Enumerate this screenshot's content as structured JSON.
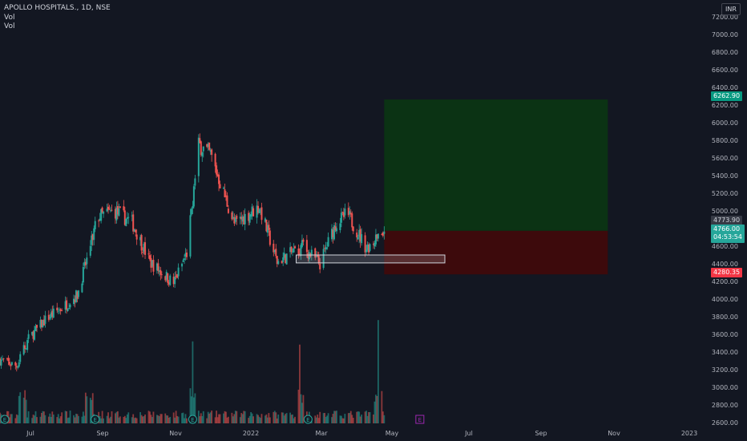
{
  "legend": {
    "symbol_line": "APOLLO HOSPITALS., 1D, NSE",
    "vol_label_1": "Vol",
    "vol_label_2": "Vol"
  },
  "currency": "INR",
  "colors": {
    "background": "#131722",
    "up": "#26a69a",
    "down": "#ef5350",
    "target_zone": "#0b3314",
    "stop_zone": "#3d0a0c",
    "target_badge": "#089981",
    "stop_badge": "#f23645",
    "last_price_badge": "#26a69a",
    "axis_text": "#b2b5be",
    "support_box": "#d1d4dc"
  },
  "price_axis": {
    "ticks": [
      "2600.00",
      "2800.00",
      "3000.00",
      "3200.00",
      "3400.00",
      "3600.00",
      "3800.00",
      "4000.00",
      "4200.00",
      "4400.00",
      "4600.00",
      "4800.00",
      "5000.00",
      "5200.00",
      "5400.00",
      "5600.00",
      "5800.00",
      "6000.00",
      "6200.00",
      "6400.00",
      "6600.00",
      "6800.00",
      "7000.00",
      "7200.00"
    ]
  },
  "time_axis": {
    "labels": [
      "Jul",
      "Sep",
      "Nov",
      "2022",
      "Mar",
      "May",
      "Jul",
      "Sep",
      "Nov",
      "2023"
    ]
  },
  "price_labels": {
    "target": "6262.90",
    "entry": "4773.90",
    "last_price": "4766.00",
    "countdown": "04:53:54",
    "stop": "4280.35"
  },
  "event_markers": {
    "dividend_icon": "E",
    "earnings_icon": "E"
  },
  "chart_data": {
    "type": "candlestick",
    "symbol": "APOLLO HOSPITALS.",
    "interval": "1D",
    "exchange": "NSE",
    "currency": "INR",
    "y_range": [
      2600,
      7200
    ],
    "x_range": [
      "2021-06-01",
      "2023-01-15"
    ],
    "ohlc_anchors": [
      {
        "date": "2021-06-01",
        "close": 3310
      },
      {
        "date": "2021-06-15",
        "close": 3240
      },
      {
        "date": "2021-06-25",
        "close": 3550
      },
      {
        "date": "2021-07-10",
        "close": 3780
      },
      {
        "date": "2021-07-25",
        "close": 3920
      },
      {
        "date": "2021-08-05",
        "close": 4050
      },
      {
        "date": "2021-08-15",
        "close": 4550
      },
      {
        "date": "2021-08-22",
        "close": 4930
      },
      {
        "date": "2021-09-05",
        "close": 5000
      },
      {
        "date": "2021-09-20",
        "close": 4870
      },
      {
        "date": "2021-10-05",
        "close": 4420
      },
      {
        "date": "2021-10-25",
        "close": 4180
      },
      {
        "date": "2021-11-05",
        "close": 4520
      },
      {
        "date": "2021-11-15",
        "close": 5750
      },
      {
        "date": "2021-11-25",
        "close": 5640
      },
      {
        "date": "2021-12-15",
        "close": 4850
      },
      {
        "date": "2022-01-05",
        "close": 5050
      },
      {
        "date": "2022-01-20",
        "close": 4420
      },
      {
        "date": "2022-02-10",
        "close": 4600
      },
      {
        "date": "2022-02-25",
        "close": 4400
      },
      {
        "date": "2022-03-10",
        "close": 4850
      },
      {
        "date": "2022-03-20",
        "close": 4970
      },
      {
        "date": "2022-04-05",
        "close": 4580
      },
      {
        "date": "2022-04-20",
        "close": 4766
      }
    ],
    "position": {
      "type": "long",
      "entry": 4773.9,
      "target": 6262.9,
      "stop": 4280.35,
      "start": "2022-04-20",
      "end": "2022-10-25"
    },
    "support_zone": {
      "from": "2022-02-05",
      "to": "2022-06-10",
      "low": 4410,
      "high": 4500
    },
    "volume": {
      "scale": "relative",
      "spikes": [
        "2021-06-20",
        "2021-08-15",
        "2021-11-10",
        "2022-02-08",
        "2022-04-15"
      ]
    }
  }
}
